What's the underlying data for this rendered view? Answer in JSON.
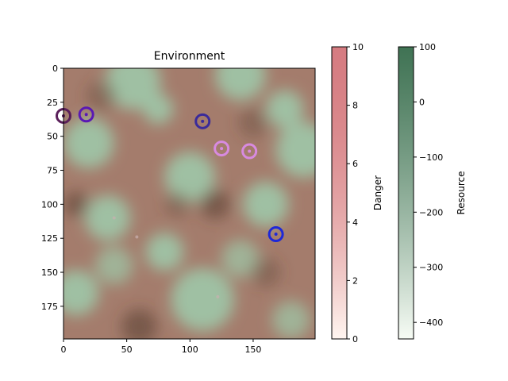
{
  "chart_data": [
    {
      "type": "heatmap",
      "title": "Environment",
      "xlim": [
        0,
        199
      ],
      "ylim": [
        199,
        0
      ],
      "x_ticks": [
        0,
        50,
        100,
        150
      ],
      "y_ticks": [
        0,
        25,
        50,
        75,
        100,
        125,
        150,
        175
      ],
      "blobs": [
        {
          "x": 55,
          "y": 10,
          "r": 22,
          "v": 1
        },
        {
          "x": 140,
          "y": 5,
          "r": 20,
          "v": 1
        },
        {
          "x": 190,
          "y": 60,
          "r": 22,
          "v": 1
        },
        {
          "x": 100,
          "y": 80,
          "r": 20,
          "v": 1
        },
        {
          "x": 110,
          "y": 170,
          "r": 25,
          "v": 1
        },
        {
          "x": 10,
          "y": 165,
          "r": 18,
          "v": 1
        },
        {
          "x": 35,
          "y": 110,
          "r": 18,
          "v": 1
        },
        {
          "x": 160,
          "y": 100,
          "r": 18,
          "v": 1
        },
        {
          "x": 80,
          "y": 135,
          "r": 15,
          "v": 1
        },
        {
          "x": 20,
          "y": 55,
          "r": 20,
          "v": 1
        },
        {
          "x": 175,
          "y": 30,
          "r": 15,
          "v": 1
        },
        {
          "x": 75,
          "y": 30,
          "r": 12,
          "v": 1
        },
        {
          "x": 40,
          "y": 145,
          "r": 15,
          "v": 0.8
        },
        {
          "x": 140,
          "y": 140,
          "r": 15,
          "v": 0.8
        },
        {
          "x": 180,
          "y": 185,
          "r": 15,
          "v": 0.8
        },
        {
          "x": 10,
          "y": 100,
          "r": 10,
          "v": -1
        },
        {
          "x": 120,
          "y": 100,
          "r": 12,
          "v": -1
        },
        {
          "x": 60,
          "y": 190,
          "r": 14,
          "v": -1
        },
        {
          "x": 90,
          "y": 100,
          "r": 10,
          "v": -0.6
        },
        {
          "x": 160,
          "y": 150,
          "r": 12,
          "v": -0.6
        },
        {
          "x": 30,
          "y": 20,
          "r": 12,
          "v": -0.6
        },
        {
          "x": 150,
          "y": 40,
          "r": 12,
          "v": -0.6
        }
      ],
      "agents": [
        {
          "x": 0,
          "y": 35,
          "color": "#5a1f5a"
        },
        {
          "x": 18,
          "y": 34,
          "color": "#5a18b4"
        },
        {
          "x": 110,
          "y": 39,
          "color": "#3a2a9a"
        },
        {
          "x": 125,
          "y": 59,
          "color": "#d88ae0"
        },
        {
          "x": 147,
          "y": 61,
          "color": "#d88ae0"
        },
        {
          "x": 168,
          "y": 122,
          "color": "#1e28d8"
        }
      ],
      "faint_dots": [
        {
          "x": 40,
          "y": 110
        },
        {
          "x": 58,
          "y": 124
        },
        {
          "x": 122,
          "y": 168
        }
      ]
    },
    {
      "type": "colorbar",
      "label": "Danger",
      "min": 0,
      "max": 10,
      "ticks": [
        0,
        2,
        4,
        6,
        8,
        10
      ],
      "color_low": "#fff5f0",
      "color_high": "#b3101a",
      "alpha": 0.55
    },
    {
      "type": "colorbar",
      "label": "Resource",
      "min": -430,
      "max": 100,
      "ticks": [
        -400,
        -300,
        -200,
        -100,
        0,
        100
      ],
      "color_low": "#f7fcf5",
      "color_high": "#00441b",
      "alpha": 0.75
    }
  ]
}
